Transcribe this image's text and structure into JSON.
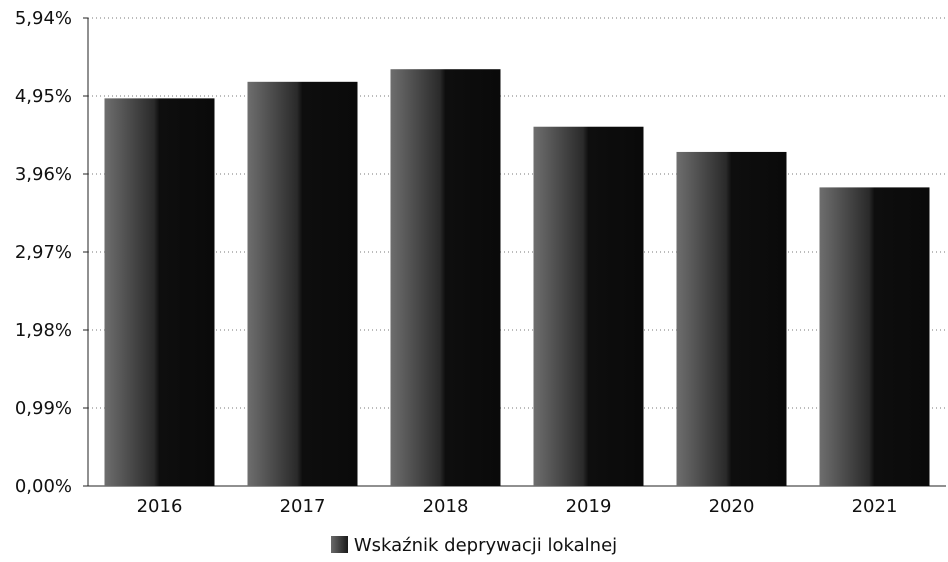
{
  "chart_data": {
    "type": "bar",
    "categories": [
      "2016",
      "2017",
      "2018",
      "2019",
      "2020",
      "2021"
    ],
    "series": [
      {
        "name": "Wskaźnik deprywacji lokalnej",
        "values": [
          4.92,
          5.13,
          5.29,
          4.56,
          4.24,
          3.79
        ]
      }
    ],
    "ylim": [
      0,
      5.94
    ],
    "yticks": [
      0,
      0.99,
      1.98,
      2.97,
      3.96,
      4.95,
      5.94
    ],
    "ytick_labels": [
      "0,00%",
      "0,99%",
      "1,98%",
      "2,97%",
      "3,96%",
      "4,95%",
      "5,94%"
    ],
    "grid": "horizontal dotted",
    "legend_position": "bottom-center",
    "bar_color": "#111111"
  }
}
